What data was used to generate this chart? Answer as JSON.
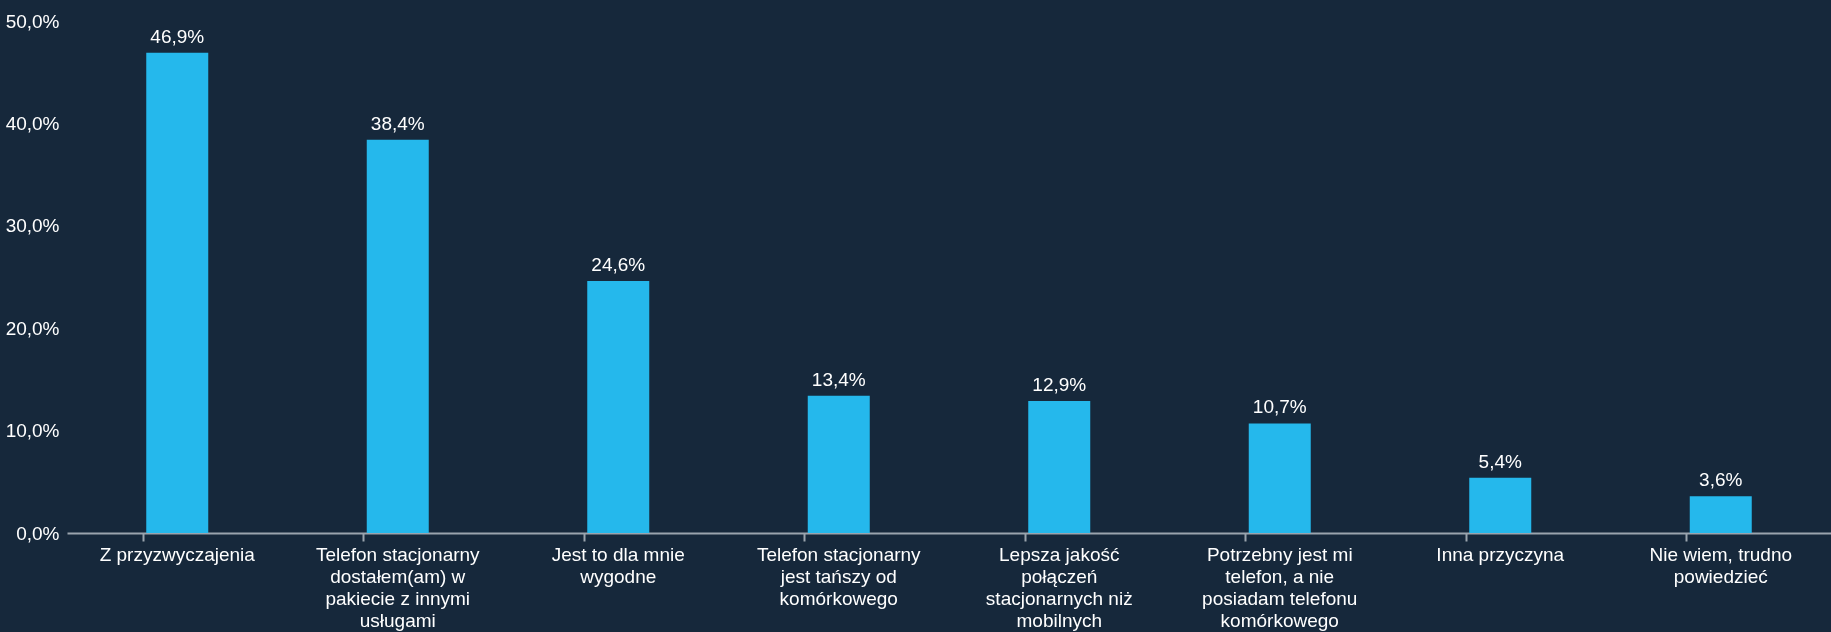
{
  "chart_data": {
    "type": "bar",
    "categories": [
      "Z przyzwyczajenia",
      "Telefon stacjonarny dostałem(am) w pakiecie z innymi usługami",
      "Jest to dla mnie wygodne",
      "Telefon stacjonarny jest tańszy od komórkowego",
      "Lepsza jakość połączeń stacjonarnych niż mobilnych",
      "Potrzebny jest mi telefon, a nie posiadam telefonu komórkowego",
      "Inna przyczyna",
      "Nie wiem, trudno powiedzieć"
    ],
    "values": [
      46.9,
      38.4,
      24.6,
      13.4,
      12.9,
      10.7,
      5.4,
      3.6
    ],
    "value_labels": [
      "46,9%",
      "38,4%",
      "24,6%",
      "13,4%",
      "12,9%",
      "10,7%",
      "5,4%",
      "3,6%"
    ],
    "color": "#25b8ec",
    "ylim": [
      0,
      50
    ],
    "yticks": [
      {
        "value": 0,
        "label": "0,0%"
      },
      {
        "value": 10,
        "label": "10,0%"
      },
      {
        "value": 20,
        "label": "20,0%"
      },
      {
        "value": 30,
        "label": "30,0%"
      },
      {
        "value": 40,
        "label": "40,0%"
      },
      {
        "value": 50,
        "label": "50,0%"
      }
    ],
    "grid": false
  }
}
